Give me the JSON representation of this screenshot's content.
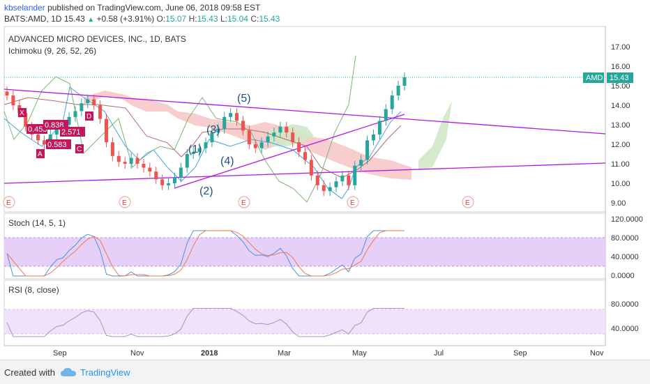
{
  "header": {
    "user": "kbselander",
    "published": "published on TradingView.com, June 06, 2018 09:58 EST",
    "symbol": "BATS:AMD, 1D",
    "last": "15.43",
    "change": "+0.58 (+3.91%)",
    "open_label": "O:",
    "open": "15.07",
    "high_label": "H:",
    "high": "15.43",
    "low_label": "L:",
    "low": "15.04",
    "close_label": "C:",
    "close": "15.43"
  },
  "main_pane": {
    "title": "ADVANCED MICRO DEVICES, INC., 1D, BATS",
    "indicator": "Ichimoku (9, 26, 52, 26)",
    "price_tag_symbol": "AMD",
    "price_tag_value": "15.43",
    "y_ticks": [
      "17.00",
      "16.00",
      "15.00",
      "14.00",
      "13.00",
      "12.00",
      "11.00",
      "10.00",
      "9.00"
    ],
    "earnings_marker": "E"
  },
  "stoch_pane": {
    "title": "Stoch (14, 5, 1)",
    "y_ticks": [
      "120.0000",
      "80.0000",
      "40.0000",
      "0.0000"
    ]
  },
  "rsi_pane": {
    "title": "RSI (8, close)",
    "y_ticks": [
      "80.0000",
      "40.0000"
    ]
  },
  "x_axis": {
    "ticks": [
      "Sep",
      "Nov",
      "2018",
      "Mar",
      "May",
      "Jul",
      "Sep",
      "Nov"
    ]
  },
  "annotations": {
    "waves": [
      "(1)",
      "(2)",
      "(3)",
      "(4)",
      "(5)"
    ],
    "xabcd": {
      "points": [
        "X",
        "A",
        "B",
        "C",
        "D"
      ],
      "ratios": [
        "0.453",
        "0.838",
        "2.571",
        "0.583"
      ]
    }
  },
  "footer": {
    "created_with": "Created with",
    "brand": "TradingView"
  },
  "colors": {
    "candle_up": "#26a69a",
    "candle_down": "#ef5350",
    "trendline": "#b414e6",
    "cloud_red": "#f6c8c8",
    "cloud_green": "#cfe8c4",
    "stoch_band": "#e6d0f7",
    "rsi_band": "#f0e2fa",
    "pattern": "#c2185b",
    "price_tag": "#26a69a"
  },
  "chart_data": {
    "type": "candlestick",
    "symbol": "BATS:AMD",
    "interval": "1D",
    "x_axis_ticks": [
      "Sep",
      "Nov",
      "2018",
      "Mar",
      "May",
      "Jul",
      "Sep",
      "Nov"
    ],
    "y_range": [
      8.6,
      17.6
    ],
    "closes": [
      14.5,
      14.0,
      13.6,
      12.9,
      12.5,
      12.2,
      12.0,
      12.5,
      12.9,
      13.0,
      13.4,
      13.7,
      14.1,
      14.3,
      14.0,
      13.3,
      12.1,
      11.4,
      11.1,
      11.0,
      11.3,
      11.0,
      10.8,
      10.6,
      10.2,
      9.9,
      10.0,
      10.3,
      10.8,
      11.5,
      11.6,
      11.8,
      12.1,
      12.6,
      12.8,
      13.4,
      13.6,
      13.2,
      12.7,
      12.0,
      11.8,
      12.1,
      12.4,
      12.6,
      12.9,
      12.6,
      12.1,
      11.6,
      11.2,
      10.4,
      9.9,
      9.6,
      9.8,
      10.1,
      10.4,
      9.9,
      10.9,
      11.2,
      12.2,
      12.5,
      13.2,
      13.8,
      14.5,
      15.0,
      15.43
    ],
    "earnings_markers_approx": [
      "Jul-2017",
      "Oct-2017",
      "Jan-2018",
      "Apr-2018",
      "Jul-2018"
    ],
    "stoch_range": [
      0,
      120
    ],
    "stoch_band": [
      20,
      80
    ],
    "rsi_band": [
      30,
      70
    ]
  }
}
